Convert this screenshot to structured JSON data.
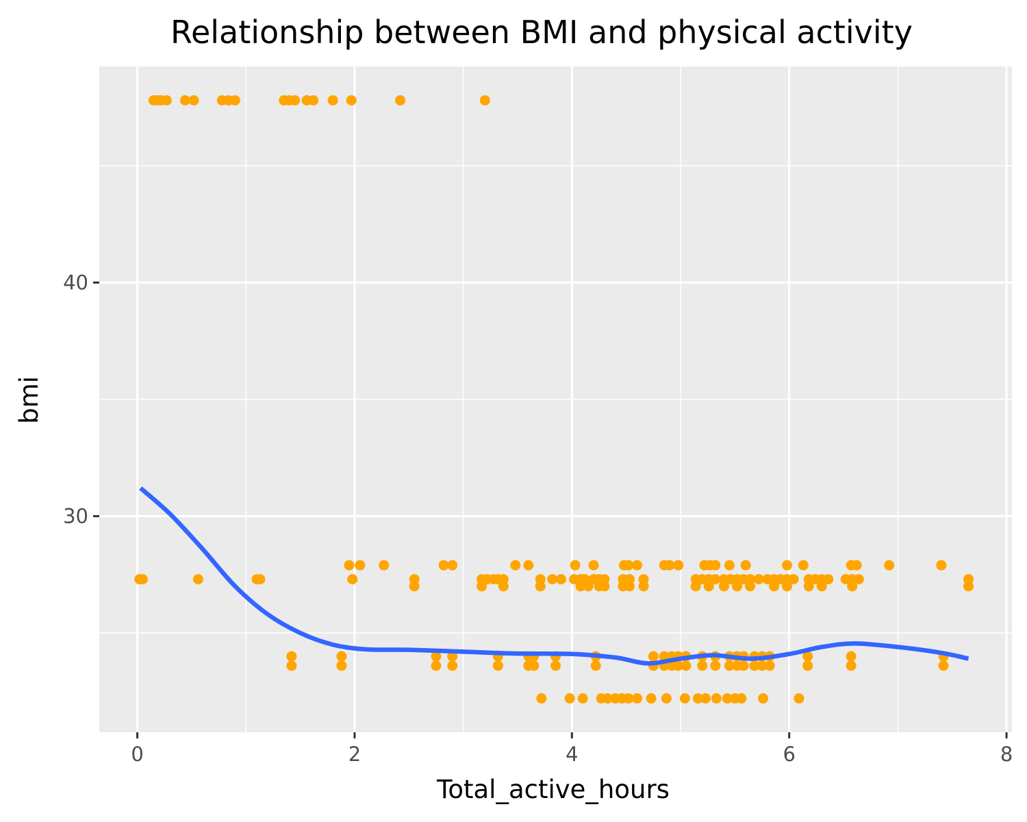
{
  "chart_data": {
    "type": "scatter",
    "title": "Relationship between BMI and physical activity",
    "xlabel": "Total_active_hours",
    "ylabel": "bmi",
    "xlim": [
      -0.35,
      8.05
    ],
    "ylim": [
      20.75,
      49.25
    ],
    "x_ticks": [
      0,
      2,
      4,
      6,
      8
    ],
    "y_ticks": [
      30,
      40
    ],
    "x_tick_labels": [
      "0",
      "2",
      "4",
      "6",
      "8"
    ],
    "y_tick_labels": [
      "30",
      "40"
    ],
    "grid": true,
    "legend": "none",
    "colors": {
      "panel_background": "#ebebeb",
      "grid": "#ffffff",
      "points": "#ffa500",
      "smooth_line": "#3366ff",
      "tick_label": "#4d4d4d"
    },
    "series": [
      {
        "type": "scatter",
        "points": [
          [
            0.15,
            47.8
          ],
          [
            0.18,
            47.8
          ],
          [
            0.22,
            47.8
          ],
          [
            0.27,
            47.8
          ],
          [
            0.44,
            47.8
          ],
          [
            0.52,
            47.8
          ],
          [
            0.78,
            47.8
          ],
          [
            0.84,
            47.8
          ],
          [
            0.9,
            47.8
          ],
          [
            1.35,
            47.8
          ],
          [
            1.4,
            47.8
          ],
          [
            1.45,
            47.8
          ],
          [
            1.56,
            47.8
          ],
          [
            1.62,
            47.8
          ],
          [
            1.8,
            47.8
          ],
          [
            1.97,
            47.8
          ],
          [
            2.42,
            47.8
          ],
          [
            3.2,
            47.8
          ],
          [
            0.02,
            27.3
          ],
          [
            0.05,
            27.3
          ],
          [
            0.56,
            27.3
          ],
          [
            1.1,
            27.3
          ],
          [
            1.13,
            27.3
          ],
          [
            1.98,
            27.3
          ],
          [
            2.55,
            27.3
          ],
          [
            2.55,
            27.0
          ],
          [
            3.17,
            27.3
          ],
          [
            3.17,
            27.0
          ],
          [
            3.22,
            27.3
          ],
          [
            3.28,
            27.3
          ],
          [
            3.32,
            27.3
          ],
          [
            3.37,
            27.3
          ],
          [
            3.37,
            27.0
          ],
          [
            3.71,
            27.3
          ],
          [
            3.71,
            27.0
          ],
          [
            3.82,
            27.3
          ],
          [
            3.9,
            27.3
          ],
          [
            4.02,
            27.3
          ],
          [
            4.08,
            27.3
          ],
          [
            4.08,
            27.0
          ],
          [
            4.12,
            27.3
          ],
          [
            4.15,
            27.0
          ],
          [
            4.2,
            27.3
          ],
          [
            4.25,
            27.3
          ],
          [
            4.25,
            27.0
          ],
          [
            4.3,
            27.3
          ],
          [
            4.3,
            27.0
          ],
          [
            4.47,
            27.3
          ],
          [
            4.47,
            27.0
          ],
          [
            4.53,
            27.3
          ],
          [
            4.53,
            27.0
          ],
          [
            4.66,
            27.3
          ],
          [
            4.66,
            27.0
          ],
          [
            5.14,
            27.3
          ],
          [
            5.14,
            27.0
          ],
          [
            5.2,
            27.3
          ],
          [
            5.26,
            27.3
          ],
          [
            5.26,
            27.0
          ],
          [
            5.32,
            27.3
          ],
          [
            5.4,
            27.3
          ],
          [
            5.4,
            27.0
          ],
          [
            5.46,
            27.3
          ],
          [
            5.52,
            27.3
          ],
          [
            5.52,
            27.0
          ],
          [
            5.58,
            27.3
          ],
          [
            5.64,
            27.3
          ],
          [
            5.64,
            27.0
          ],
          [
            5.72,
            27.3
          ],
          [
            5.8,
            27.3
          ],
          [
            5.86,
            27.3
          ],
          [
            5.86,
            27.0
          ],
          [
            5.92,
            27.3
          ],
          [
            5.98,
            27.3
          ],
          [
            5.98,
            27.0
          ],
          [
            6.04,
            27.3
          ],
          [
            6.18,
            27.3
          ],
          [
            6.18,
            27.0
          ],
          [
            6.24,
            27.3
          ],
          [
            6.3,
            27.3
          ],
          [
            6.3,
            27.0
          ],
          [
            6.36,
            27.3
          ],
          [
            6.52,
            27.3
          ],
          [
            6.58,
            27.3
          ],
          [
            6.58,
            27.0
          ],
          [
            6.64,
            27.3
          ],
          [
            7.65,
            27.3
          ],
          [
            7.65,
            27.0
          ],
          [
            1.95,
            27.9
          ],
          [
            2.05,
            27.9
          ],
          [
            2.27,
            27.9
          ],
          [
            2.82,
            27.9
          ],
          [
            2.9,
            27.9
          ],
          [
            3.48,
            27.9
          ],
          [
            3.6,
            27.9
          ],
          [
            4.03,
            27.9
          ],
          [
            4.2,
            27.9
          ],
          [
            4.48,
            27.9
          ],
          [
            4.52,
            27.9
          ],
          [
            4.6,
            27.9
          ],
          [
            4.85,
            27.9
          ],
          [
            4.9,
            27.9
          ],
          [
            4.98,
            27.9
          ],
          [
            5.22,
            27.9
          ],
          [
            5.27,
            27.9
          ],
          [
            5.32,
            27.9
          ],
          [
            5.45,
            27.9
          ],
          [
            5.6,
            27.9
          ],
          [
            5.98,
            27.9
          ],
          [
            6.13,
            27.9
          ],
          [
            6.57,
            27.9
          ],
          [
            6.62,
            27.9
          ],
          [
            6.92,
            27.9
          ],
          [
            7.4,
            27.9
          ],
          [
            1.42,
            24.0
          ],
          [
            1.42,
            23.6
          ],
          [
            1.88,
            24.0
          ],
          [
            1.88,
            23.6
          ],
          [
            2.75,
            24.0
          ],
          [
            2.75,
            23.6
          ],
          [
            2.9,
            24.0
          ],
          [
            2.9,
            23.6
          ],
          [
            3.32,
            24.0
          ],
          [
            3.32,
            23.6
          ],
          [
            3.6,
            24.0
          ],
          [
            3.6,
            23.6
          ],
          [
            3.65,
            24.0
          ],
          [
            3.65,
            23.6
          ],
          [
            3.85,
            24.0
          ],
          [
            3.85,
            23.6
          ],
          [
            4.22,
            24.0
          ],
          [
            4.22,
            23.6
          ],
          [
            4.75,
            24.0
          ],
          [
            4.75,
            23.6
          ],
          [
            4.85,
            24.0
          ],
          [
            4.85,
            23.6
          ],
          [
            4.92,
            24.0
          ],
          [
            4.92,
            23.6
          ],
          [
            4.98,
            24.0
          ],
          [
            4.98,
            23.6
          ],
          [
            5.05,
            24.0
          ],
          [
            5.05,
            23.6
          ],
          [
            5.2,
            24.0
          ],
          [
            5.2,
            23.6
          ],
          [
            5.32,
            24.0
          ],
          [
            5.32,
            23.6
          ],
          [
            5.45,
            24.0
          ],
          [
            5.45,
            23.6
          ],
          [
            5.52,
            24.0
          ],
          [
            5.52,
            23.6
          ],
          [
            5.58,
            24.0
          ],
          [
            5.58,
            23.6
          ],
          [
            5.68,
            24.0
          ],
          [
            5.68,
            23.6
          ],
          [
            5.75,
            24.0
          ],
          [
            5.75,
            23.6
          ],
          [
            5.82,
            24.0
          ],
          [
            5.82,
            23.6
          ],
          [
            6.17,
            24.0
          ],
          [
            6.17,
            23.6
          ],
          [
            6.57,
            24.0
          ],
          [
            6.57,
            23.6
          ],
          [
            7.42,
            24.0
          ],
          [
            7.42,
            23.6
          ],
          [
            3.72,
            22.2
          ],
          [
            3.98,
            22.2
          ],
          [
            4.1,
            22.2
          ],
          [
            4.27,
            22.2
          ],
          [
            4.33,
            22.2
          ],
          [
            4.4,
            22.2
          ],
          [
            4.46,
            22.2
          ],
          [
            4.52,
            22.2
          ],
          [
            4.6,
            22.2
          ],
          [
            4.73,
            22.2
          ],
          [
            4.87,
            22.2
          ],
          [
            5.04,
            22.2
          ],
          [
            5.16,
            22.2
          ],
          [
            5.23,
            22.2
          ],
          [
            5.33,
            22.2
          ],
          [
            5.43,
            22.2
          ],
          [
            5.5,
            22.2
          ],
          [
            5.56,
            22.2
          ],
          [
            5.76,
            22.2
          ],
          [
            6.09,
            22.2
          ]
        ]
      },
      {
        "type": "smooth_line",
        "points": [
          [
            0.03,
            31.2
          ],
          [
            0.3,
            30.1
          ],
          [
            0.6,
            28.6
          ],
          [
            0.9,
            27.0
          ],
          [
            1.2,
            25.8
          ],
          [
            1.5,
            25.0
          ],
          [
            1.8,
            24.5
          ],
          [
            2.1,
            24.3
          ],
          [
            2.5,
            24.28
          ],
          [
            3.0,
            24.2
          ],
          [
            3.5,
            24.12
          ],
          [
            4.0,
            24.1
          ],
          [
            4.4,
            23.95
          ],
          [
            4.7,
            23.7
          ],
          [
            5.0,
            23.9
          ],
          [
            5.3,
            24.05
          ],
          [
            5.65,
            23.9
          ],
          [
            6.0,
            24.1
          ],
          [
            6.3,
            24.4
          ],
          [
            6.6,
            24.55
          ],
          [
            7.0,
            24.4
          ],
          [
            7.4,
            24.15
          ],
          [
            7.65,
            23.9
          ]
        ]
      }
    ]
  }
}
